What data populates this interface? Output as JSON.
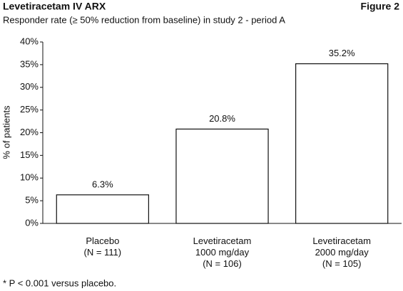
{
  "chart_data": {
    "type": "bar",
    "title": "Levetiracetam IV ARX",
    "figure_label": "Figure 2",
    "subtitle": "Responder rate (≥ 50% reduction from baseline) in study 2 - period A",
    "y_label": "% of patients",
    "categories": [
      "Placebo\n(N = 111)",
      "Levetiracetam\n1000 mg/day\n(N = 106)",
      "Levetiracetam\n2000 mg/day\n(N = 105)"
    ],
    "values": [
      6.3,
      20.8,
      35.2
    ],
    "value_labels": [
      "6.3%",
      "20.8%",
      "35.2%"
    ],
    "color": "#ffffff",
    "ylim": [
      0,
      40
    ],
    "yticks": [
      {
        "value": 0,
        "label": "0%"
      },
      {
        "value": 5,
        "label": "5%"
      },
      {
        "value": 10,
        "label": "10%"
      },
      {
        "value": 15,
        "label": "15%"
      },
      {
        "value": 20,
        "label": "20%"
      },
      {
        "value": 25,
        "label": "25%"
      },
      {
        "value": 30,
        "label": "30%"
      },
      {
        "value": 35,
        "label": "35%"
      },
      {
        "value": 40,
        "label": "40%"
      }
    ],
    "grid": false,
    "footnote": "* P < 0.001 versus placebo."
  }
}
